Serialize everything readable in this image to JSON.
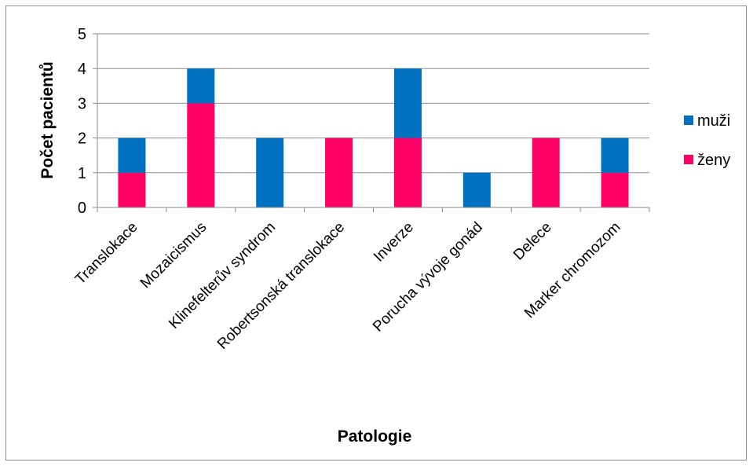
{
  "chart_data": {
    "type": "bar",
    "stacked": true,
    "categories": [
      "Translokace",
      "Mozaicismus",
      "Klinefelterův syndrom",
      "Robertsonská translokace",
      "Inverze",
      "Porucha vývoje gonád",
      "Delece",
      "Marker chromozom"
    ],
    "series": [
      {
        "name": "ženy",
        "color": "#ff0066",
        "values": [
          1,
          3,
          0,
          2,
          2,
          0,
          2,
          1
        ]
      },
      {
        "name": "muži",
        "color": "#0070c0",
        "values": [
          1,
          1,
          2,
          0,
          2,
          1,
          0,
          1
        ]
      }
    ],
    "title": "",
    "xlabel": "Patologie",
    "ylabel": "Počet pacientů",
    "ylim": [
      0,
      5
    ],
    "yticks": [
      "0",
      "1",
      "2",
      "3",
      "4",
      "5"
    ],
    "grid": true,
    "legend": {
      "placement": "right",
      "entries": [
        "muži",
        "ženy"
      ]
    }
  }
}
